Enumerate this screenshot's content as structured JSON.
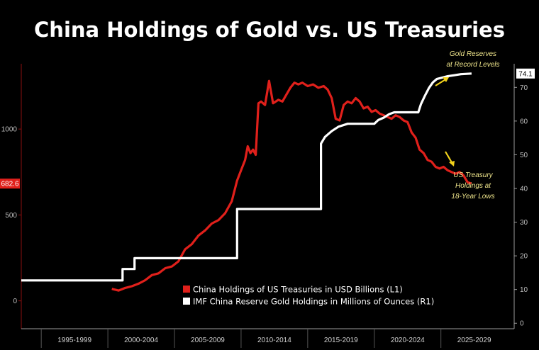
{
  "chart_data": {
    "type": "line",
    "title": "China Holdings of Gold vs. US Treasuries",
    "x_categories": [
      "1995-1999",
      "2000-2004",
      "2005-2009",
      "2010-2014",
      "2015-2019",
      "2020-2024",
      "2025-2029"
    ],
    "x_range": [
      1993,
      2030
    ],
    "y_left": {
      "min": -150,
      "max": 1380,
      "ticks": [
        0,
        500,
        1000
      ],
      "current_label": "682.6",
      "current_value": 682.6
    },
    "y_right": {
      "min": -1,
      "max": 77,
      "ticks": [
        0,
        10,
        20,
        30,
        40,
        50,
        60,
        70
      ],
      "current_label": "74.1",
      "current_value": 74.1
    },
    "legend_position": "bottom-right",
    "series": [
      {
        "name": "China Holdings of US Treasuries in USD Billions (L1)",
        "axis": "left",
        "color": "#e0201b",
        "points": [
          [
            1999.8,
            70
          ],
          [
            2000.3,
            60
          ],
          [
            2000.8,
            75
          ],
          [
            2001.3,
            85
          ],
          [
            2001.8,
            100
          ],
          [
            2002.3,
            120
          ],
          [
            2002.8,
            150
          ],
          [
            2003.3,
            160
          ],
          [
            2003.8,
            190
          ],
          [
            2004.3,
            200
          ],
          [
            2004.8,
            230
          ],
          [
            2005.3,
            300
          ],
          [
            2005.8,
            330
          ],
          [
            2006.3,
            380
          ],
          [
            2006.8,
            410
          ],
          [
            2007.3,
            450
          ],
          [
            2007.8,
            470
          ],
          [
            2008.3,
            510
          ],
          [
            2008.8,
            580
          ],
          [
            2009.2,
            700
          ],
          [
            2009.5,
            760
          ],
          [
            2009.8,
            820
          ],
          [
            2010.0,
            900
          ],
          [
            2010.2,
            860
          ],
          [
            2010.4,
            880
          ],
          [
            2010.6,
            850
          ],
          [
            2010.8,
            1150
          ],
          [
            2011.0,
            1160
          ],
          [
            2011.3,
            1140
          ],
          [
            2011.6,
            1280
          ],
          [
            2011.9,
            1150
          ],
          [
            2012.3,
            1170
          ],
          [
            2012.6,
            1160
          ],
          [
            2012.9,
            1200
          ],
          [
            2013.2,
            1240
          ],
          [
            2013.5,
            1270
          ],
          [
            2013.8,
            1260
          ],
          [
            2014.1,
            1270
          ],
          [
            2014.5,
            1250
          ],
          [
            2014.9,
            1260
          ],
          [
            2015.3,
            1240
          ],
          [
            2015.7,
            1250
          ],
          [
            2016.0,
            1230
          ],
          [
            2016.3,
            1180
          ],
          [
            2016.6,
            1060
          ],
          [
            2016.9,
            1050
          ],
          [
            2017.2,
            1140
          ],
          [
            2017.5,
            1160
          ],
          [
            2017.8,
            1150
          ],
          [
            2018.1,
            1180
          ],
          [
            2018.4,
            1160
          ],
          [
            2018.7,
            1120
          ],
          [
            2019.0,
            1130
          ],
          [
            2019.3,
            1100
          ],
          [
            2019.6,
            1110
          ],
          [
            2019.9,
            1090
          ],
          [
            2020.2,
            1080
          ],
          [
            2020.5,
            1070
          ],
          [
            2020.8,
            1060
          ],
          [
            2021.1,
            1080
          ],
          [
            2021.4,
            1070
          ],
          [
            2021.7,
            1050
          ],
          [
            2022.0,
            1040
          ],
          [
            2022.3,
            980
          ],
          [
            2022.6,
            950
          ],
          [
            2022.9,
            880
          ],
          [
            2023.2,
            860
          ],
          [
            2023.5,
            820
          ],
          [
            2023.8,
            810
          ],
          [
            2024.1,
            780
          ],
          [
            2024.4,
            770
          ],
          [
            2024.7,
            780
          ],
          [
            2025.0,
            760
          ],
          [
            2025.3,
            750
          ],
          [
            2025.6,
            740
          ],
          [
            2025.9,
            750
          ],
          [
            2026.2,
            730
          ],
          [
            2026.5,
            690
          ],
          [
            2026.8,
            682.6
          ]
        ]
      },
      {
        "name": "IMF China Reserve Gold Holdings in Millions of Ounces (R1)",
        "axis": "right",
        "color": "#ffffff",
        "points": [
          [
            1993,
            12.7
          ],
          [
            2000.6,
            12.7
          ],
          [
            2000.6,
            16.1
          ],
          [
            2001.5,
            16.1
          ],
          [
            2001.5,
            19.3
          ],
          [
            2009.2,
            19.3
          ],
          [
            2009.2,
            33.9
          ],
          [
            2015.5,
            33.9
          ],
          [
            2015.5,
            53.3
          ],
          [
            2015.8,
            55.3
          ],
          [
            2016.3,
            57.0
          ],
          [
            2016.8,
            58.3
          ],
          [
            2017.5,
            59.2
          ],
          [
            2019.5,
            59.2
          ],
          [
            2019.8,
            60.3
          ],
          [
            2020.2,
            61.0
          ],
          [
            2020.6,
            62.0
          ],
          [
            2021.0,
            62.6
          ],
          [
            2022.8,
            62.6
          ],
          [
            2023.0,
            65.0
          ],
          [
            2023.3,
            67.5
          ],
          [
            2023.6,
            69.8
          ],
          [
            2023.9,
            71.5
          ],
          [
            2024.2,
            72.5
          ],
          [
            2024.6,
            72.9
          ],
          [
            2025.0,
            73.3
          ],
          [
            2025.5,
            73.6
          ],
          [
            2026.0,
            73.9
          ],
          [
            2026.8,
            74.1
          ]
        ]
      }
    ],
    "annotations": [
      {
        "lines": [
          "Gold Reserves",
          "at Record Levels"
        ]
      },
      {
        "lines": [
          "US Treasury",
          "Holdings at",
          "18-Year Lows"
        ]
      }
    ],
    "arrow_color": "#f2d21b"
  }
}
